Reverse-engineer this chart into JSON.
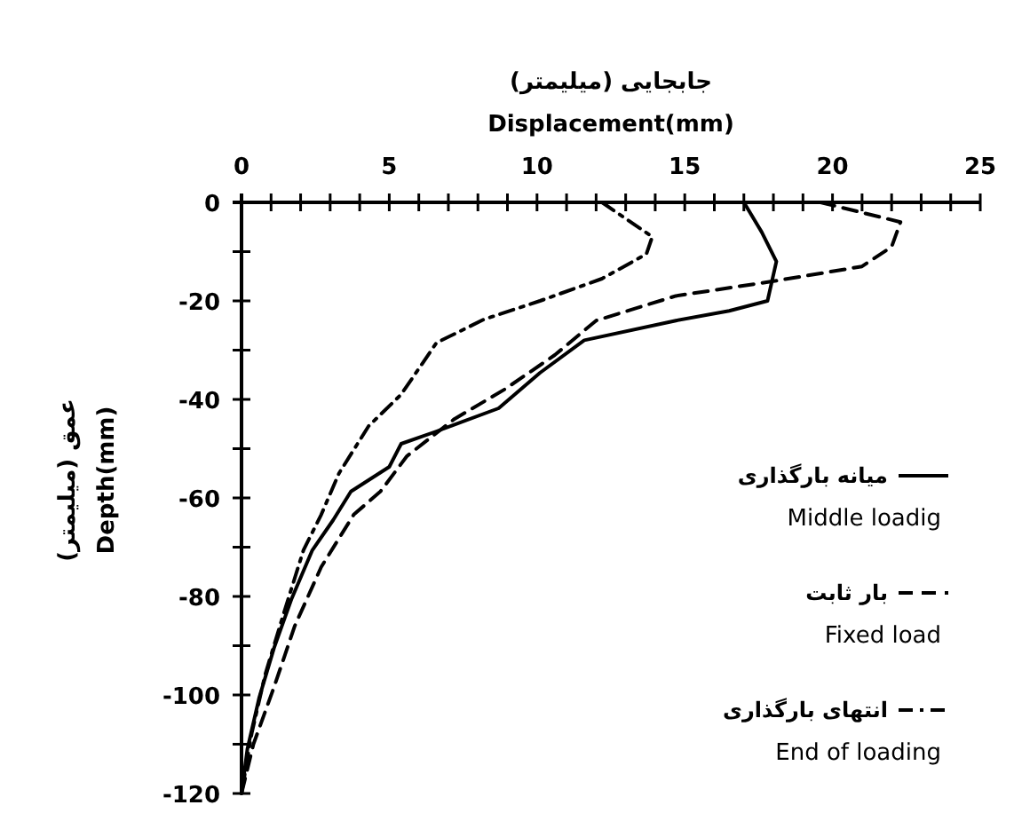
{
  "chart_data": {
    "type": "line",
    "xlabel": "جابجایی (میلیمتر)\nDisplacement(mm)",
    "ylabel": "عمق (میلیمتر)\nDepth(mm)",
    "xlim": [
      0,
      25
    ],
    "ylim": [
      -120,
      0
    ],
    "xticks": [
      0,
      {
        "value": 1,
        "label": null
      },
      {
        "value": 2,
        "label": null
      },
      {
        "value": 3,
        "label": null
      },
      {
        "value": 4,
        "label": null
      },
      5,
      {
        "value": 6,
        "label": null
      },
      {
        "value": 7,
        "label": null
      },
      {
        "value": 8,
        "label": null
      },
      {
        "value": 9,
        "label": null
      },
      10,
      {
        "value": 11,
        "label": null
      },
      {
        "value": 12,
        "label": null
      },
      {
        "value": 13,
        "label": null
      },
      {
        "value": 14,
        "label": null
      },
      15,
      {
        "value": 16,
        "label": null
      },
      {
        "value": 17,
        "label": null
      },
      {
        "value": 18,
        "label": null
      },
      {
        "value": 19,
        "label": null
      },
      20,
      {
        "value": 21,
        "label": null
      },
      {
        "value": 22,
        "label": null
      },
      {
        "value": 23,
        "label": null
      },
      {
        "value": 24,
        "label": null
      },
      25
    ],
    "yticks": [
      0,
      {
        "value": -10,
        "label": null
      },
      -20,
      {
        "value": -30,
        "label": null
      },
      -40,
      {
        "value": -50,
        "label": null
      },
      -60,
      {
        "value": -70,
        "label": null
      },
      -80,
      {
        "value": -90,
        "label": null
      },
      -100,
      {
        "value": -110,
        "label": null
      },
      -120
    ],
    "grid": false,
    "legend": "right",
    "marker": "none",
    "series": [
      {
        "name": "میانه بارگذاری\nMiddle loadig",
        "color": "#000000",
        "line_style": "solid",
        "x": [
          17.0,
          17.6,
          18.1,
          17.8,
          16.5,
          14.7,
          11.6,
          10.1,
          8.7,
          6.6,
          5.4,
          5.0,
          3.7,
          3.1,
          2.4,
          1.7,
          1.1,
          0.6,
          0.2,
          0
        ],
        "values": [
          0,
          -6,
          -12,
          -20,
          -22,
          -24,
          -28,
          -34.6,
          -41.8,
          -46.5,
          -49,
          -53.7,
          -58.7,
          -64.5,
          -70.6,
          -80.4,
          -90.5,
          -100.5,
          -111,
          -120
        ]
      },
      {
        "name": "بار ثابت\nFixed load",
        "color": "#000000",
        "line_style": "dashed",
        "x": [
          19.6,
          22.3,
          22.0,
          21.0,
          18.0,
          14.7,
          12.0,
          10.6,
          8.9,
          7.2,
          5.6,
          4.7,
          3.8,
          2.7,
          1.8,
          1.1,
          0.4,
          0
        ],
        "values": [
          0,
          -4,
          -9,
          -13,
          -16,
          -19,
          -24,
          -31,
          -38,
          -44,
          -51.5,
          -58.7,
          -63.4,
          -74,
          -86,
          -98.4,
          -110,
          -120
        ]
      },
      {
        "name": "انتهای بارگذاری\nEnd of loading",
        "color": "#000000",
        "line_style": "dashdot",
        "x": [
          12.2,
          13.9,
          13.7,
          12.2,
          10.1,
          8.2,
          6.6,
          5.4,
          4.3,
          3.3,
          2.7,
          2.1,
          1.4,
          0.8,
          0.35,
          0
        ],
        "values": [
          0,
          -7,
          -10.5,
          -15.5,
          -20,
          -23.8,
          -28.5,
          -39,
          -45.4,
          -55,
          -63.4,
          -70.6,
          -84,
          -95.9,
          -107.7,
          -120
        ]
      }
    ]
  }
}
